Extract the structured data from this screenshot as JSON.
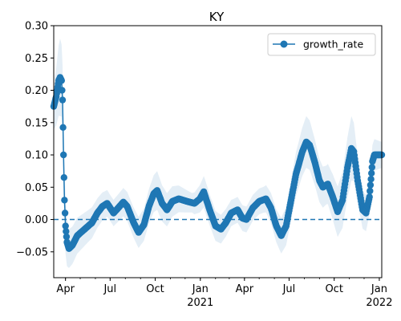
{
  "chart_data": {
    "type": "line",
    "title": "KY",
    "xlabel": "",
    "ylabel": "",
    "x_range": [
      "2020-03-08",
      "2022-01-06"
    ],
    "ylim": [
      -0.09,
      0.3
    ],
    "y_ticks": [
      -0.05,
      0.0,
      0.05,
      0.1,
      0.15,
      0.2,
      0.25,
      0.3
    ],
    "y_tick_labels": [
      "−0.05",
      "0.00",
      "0.05",
      "0.10",
      "0.15",
      "0.20",
      "0.25",
      "0.30"
    ],
    "x_major_ticks": [
      {
        "date": "2020-04-01",
        "label": "Apr",
        "sublabel": ""
      },
      {
        "date": "2020-07-01",
        "label": "Jul",
        "sublabel": ""
      },
      {
        "date": "2020-10-01",
        "label": "Oct",
        "sublabel": ""
      },
      {
        "date": "2021-01-01",
        "label": "Jan",
        "sublabel": "2021"
      },
      {
        "date": "2021-04-01",
        "label": "Apr",
        "sublabel": ""
      },
      {
        "date": "2021-07-01",
        "label": "Jul",
        "sublabel": ""
      },
      {
        "date": "2021-10-01",
        "label": "Oct",
        "sublabel": ""
      },
      {
        "date": "2022-01-01",
        "label": "Jan",
        "sublabel": "2022"
      }
    ],
    "grid": false,
    "legend_position": "top-right",
    "series": [
      {
        "name": "growth_rate",
        "color": "#1f77b4",
        "marker": "circle",
        "band_color": "#1f77b4",
        "reference_line": 0.0,
        "anchors": [
          [
            "2020-03-08",
            0.175
          ],
          [
            "2020-03-13",
            0.19
          ],
          [
            "2020-03-18",
            0.215
          ],
          [
            "2020-03-21",
            0.22
          ],
          [
            "2020-03-24",
            0.215
          ],
          [
            "2020-03-26",
            0.185
          ],
          [
            "2020-03-28",
            0.1
          ],
          [
            "2020-03-30",
            0.03
          ],
          [
            "2020-04-01",
            -0.01
          ],
          [
            "2020-04-04",
            -0.035
          ],
          [
            "2020-04-08",
            -0.045
          ],
          [
            "2020-04-15",
            -0.04
          ],
          [
            "2020-04-25",
            -0.025
          ],
          [
            "2020-05-10",
            -0.015
          ],
          [
            "2020-05-25",
            -0.005
          ],
          [
            "2020-06-05",
            0.01
          ],
          [
            "2020-06-15",
            0.02
          ],
          [
            "2020-06-25",
            0.025
          ],
          [
            "2020-07-08",
            0.01
          ],
          [
            "2020-07-20",
            0.02
          ],
          [
            "2020-07-28",
            0.027
          ],
          [
            "2020-08-05",
            0.02
          ],
          [
            "2020-08-18",
            -0.005
          ],
          [
            "2020-08-28",
            -0.02
          ],
          [
            "2020-09-08",
            -0.008
          ],
          [
            "2020-09-18",
            0.02
          ],
          [
            "2020-09-28",
            0.04
          ],
          [
            "2020-10-05",
            0.045
          ],
          [
            "2020-10-15",
            0.025
          ],
          [
            "2020-10-25",
            0.015
          ],
          [
            "2020-11-05",
            0.028
          ],
          [
            "2020-11-18",
            0.032
          ],
          [
            "2020-12-05",
            0.028
          ],
          [
            "2020-12-20",
            0.025
          ],
          [
            "2020-12-31",
            0.032
          ],
          [
            "2021-01-08",
            0.043
          ],
          [
            "2021-01-20",
            0.015
          ],
          [
            "2021-02-01",
            -0.01
          ],
          [
            "2021-02-12",
            -0.015
          ],
          [
            "2021-02-22",
            -0.005
          ],
          [
            "2021-03-05",
            0.01
          ],
          [
            "2021-03-18",
            0.015
          ],
          [
            "2021-03-28",
            0.002
          ],
          [
            "2021-04-05",
            0.0
          ],
          [
            "2021-04-18",
            0.018
          ],
          [
            "2021-05-01",
            0.028
          ],
          [
            "2021-05-15",
            0.032
          ],
          [
            "2021-05-25",
            0.018
          ],
          [
            "2021-06-05",
            -0.01
          ],
          [
            "2021-06-15",
            -0.025
          ],
          [
            "2021-06-25",
            -0.01
          ],
          [
            "2021-07-05",
            0.03
          ],
          [
            "2021-07-15",
            0.07
          ],
          [
            "2021-07-28",
            0.105
          ],
          [
            "2021-08-05",
            0.12
          ],
          [
            "2021-08-12",
            0.115
          ],
          [
            "2021-08-22",
            0.09
          ],
          [
            "2021-09-01",
            0.06
          ],
          [
            "2021-09-08",
            0.05
          ],
          [
            "2021-09-18",
            0.055
          ],
          [
            "2021-09-28",
            0.035
          ],
          [
            "2021-10-08",
            0.012
          ],
          [
            "2021-10-18",
            0.03
          ],
          [
            "2021-10-28",
            0.08
          ],
          [
            "2021-11-05",
            0.11
          ],
          [
            "2021-11-10",
            0.105
          ],
          [
            "2021-11-18",
            0.06
          ],
          [
            "2021-11-28",
            0.015
          ],
          [
            "2021-12-05",
            0.01
          ],
          [
            "2021-12-12",
            0.035
          ],
          [
            "2021-12-18",
            0.09
          ],
          [
            "2021-12-22",
            0.1
          ],
          [
            "2022-01-06",
            0.1
          ]
        ],
        "band_halfwidth_anchors": [
          [
            "2020-03-08",
            0.035
          ],
          [
            "2020-03-21",
            0.06
          ],
          [
            "2020-03-28",
            0.05
          ],
          [
            "2020-04-08",
            0.03
          ],
          [
            "2020-05-15",
            0.025
          ],
          [
            "2020-07-01",
            0.02
          ],
          [
            "2020-09-10",
            0.025
          ],
          [
            "2020-10-05",
            0.03
          ],
          [
            "2020-12-15",
            0.015
          ],
          [
            "2021-01-10",
            0.025
          ],
          [
            "2021-03-10",
            0.02
          ],
          [
            "2021-05-10",
            0.02
          ],
          [
            "2021-07-20",
            0.035
          ],
          [
            "2021-08-05",
            0.04
          ],
          [
            "2021-09-15",
            0.03
          ],
          [
            "2021-11-05",
            0.05
          ],
          [
            "2021-11-25",
            0.03
          ],
          [
            "2021-12-20",
            0.025
          ],
          [
            "2022-01-06",
            0.02
          ]
        ]
      }
    ]
  }
}
